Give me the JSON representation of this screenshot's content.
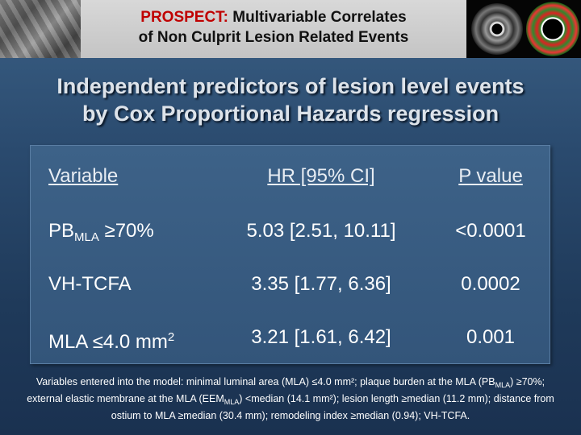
{
  "header": {
    "title_accent": "PROSPECT:",
    "title_rest": " Multivariable Correlates",
    "title_line2": "of Non Culprit Lesion Related Events"
  },
  "headline": {
    "line1": "Independent predictors of lesion level events",
    "line2": "by Cox Proportional Hazards regression"
  },
  "table": {
    "headers": {
      "variable": "Variable",
      "hr": "HR [95% CI]",
      "p": "P value"
    },
    "rows": [
      {
        "var_main": "PB",
        "var_sub": "MLA",
        "var_tail": " ≥70%",
        "hr": "5.03 [2.51, 10.11]",
        "p": "<0.0001"
      },
      {
        "var_main": "VH-TCFA",
        "hr": "3.35 [1.77, 6.36]",
        "p": "0.0002"
      },
      {
        "var_main": "MLA ≤4.0 mm",
        "var_sup": "2",
        "hr": "3.21 [1.61, 6.42]",
        "p": "0.001"
      }
    ]
  },
  "footnote": {
    "part1": "Variables entered into the model: minimal luminal area (MLA) ≤4.0 mm²; plaque burden at the MLA (PB",
    "sub1": "MLA",
    "part2": ") ≥70%; external elastic membrane at the MLA (EEM",
    "sub2": "MLA",
    "part3": ") <median (14.1 mm²); lesion length ≥median (11.2 mm); distance from ostium to MLA ≥median (30.4 mm); remodeling index ≥median (0.94); VH-TCFA."
  },
  "images": {
    "left_photo": "grayscale-photo",
    "ivus_grayscale": "ivus-grayscale-cross-section",
    "ivus_vh": "ivus-virtual-histology-cross-section"
  },
  "colors": {
    "accent": "#c00000",
    "background": "#2a4a6e"
  }
}
